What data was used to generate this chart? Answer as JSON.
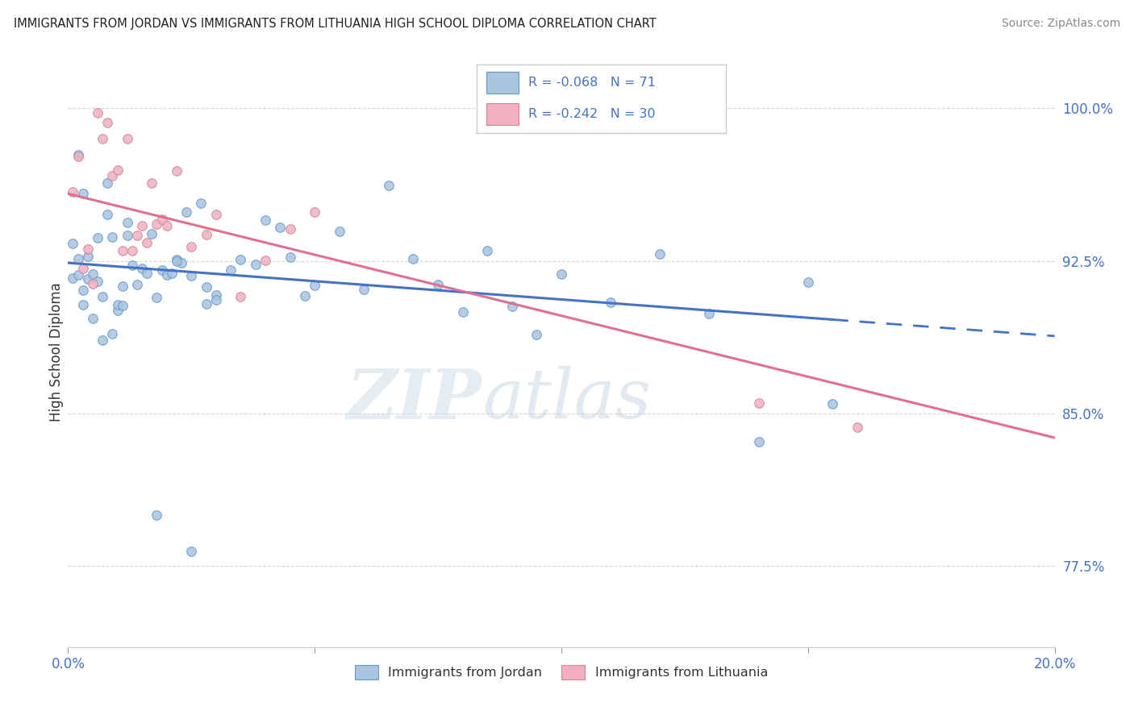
{
  "title": "IMMIGRANTS FROM JORDAN VS IMMIGRANTS FROM LITHUANIA HIGH SCHOOL DIPLOMA CORRELATION CHART",
  "source": "Source: ZipAtlas.com",
  "ylabel": "High School Diploma",
  "yticks": [
    "100.0%",
    "92.5%",
    "85.0%",
    "77.5%"
  ],
  "ytick_vals": [
    1.0,
    0.925,
    0.85,
    0.775
  ],
  "xlim": [
    0.0,
    0.2
  ],
  "ylim": [
    0.735,
    1.025
  ],
  "jordan_color": "#a8c4e0",
  "jordan_edge_color": "#6699cc",
  "jordan_line_color": "#4472C4",
  "lithuania_color": "#f0b0c0",
  "lithuania_edge_color": "#cc8899",
  "lithuania_line_color": "#e07090",
  "jordan_R": -0.068,
  "jordan_N": 71,
  "lithuania_R": -0.242,
  "lithuania_N": 30,
  "legend_label_jordan": "Immigrants from Jordan",
  "legend_label_lithuania": "Immigrants from Lithuania",
  "jordan_line_x_end": 0.155,
  "jordan_line_a": 0.924,
  "jordan_line_b": -0.18,
  "lithuania_line_a": 0.958,
  "lithuania_line_b": -0.6,
  "grid_color": "#cccccc",
  "watermark_color_zip": "#c8d8e8",
  "watermark_color_atlas": "#b0c8e0"
}
